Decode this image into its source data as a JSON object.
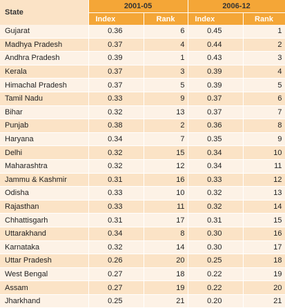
{
  "table": {
    "state_header": "State",
    "periods": [
      "2001-05",
      "2006-12"
    ],
    "sub_headers": {
      "index": "Index",
      "rank": "Rank"
    },
    "rows": [
      {
        "state": "Gujarat",
        "i1": "0.36",
        "r1": "6",
        "i2": "0.45",
        "r2": "1"
      },
      {
        "state": "Madhya Pradesh",
        "i1": "0.37",
        "r1": "4",
        "i2": "0.44",
        "r2": "2"
      },
      {
        "state": "Andhra Pradesh",
        "i1": "0.39",
        "r1": "1",
        "i2": "0.43",
        "r2": "3"
      },
      {
        "state": "Kerala",
        "i1": "0.37",
        "r1": "3",
        "i2": "0.39",
        "r2": "4"
      },
      {
        "state": "Himachal Pradesh",
        "i1": "0.37",
        "r1": "5",
        "i2": "0.39",
        "r2": "5"
      },
      {
        "state": "Tamil Nadu",
        "i1": "0.33",
        "r1": "9",
        "i2": "0.37",
        "r2": "6"
      },
      {
        "state": "Bihar",
        "i1": "0.32",
        "r1": "13",
        "i2": "0.37",
        "r2": "7"
      },
      {
        "state": "Punjab",
        "i1": "0.38",
        "r1": "2",
        "i2": "0.36",
        "r2": "8"
      },
      {
        "state": "Haryana",
        "i1": "0.34",
        "r1": "7",
        "i2": "0.35",
        "r2": "9"
      },
      {
        "state": "Delhi",
        "i1": "0.32",
        "r1": "15",
        "i2": "0.34",
        "r2": "10"
      },
      {
        "state": "Maharashtra",
        "i1": "0.32",
        "r1": "12",
        "i2": "0.34",
        "r2": "11"
      },
      {
        "state": "Jammu & Kashmir",
        "i1": "0.31",
        "r1": "16",
        "i2": "0.33",
        "r2": "12"
      },
      {
        "state": "Odisha",
        "i1": "0.33",
        "r1": "10",
        "i2": "0.32",
        "r2": "13"
      },
      {
        "state": "Rajasthan",
        "i1": "0.33",
        "r1": "11",
        "i2": "0.32",
        "r2": "14"
      },
      {
        "state": "Chhattisgarh",
        "i1": "0.31",
        "r1": "17",
        "i2": "0.31",
        "r2": "15"
      },
      {
        "state": "Uttarakhand",
        "i1": "0.34",
        "r1": "8",
        "i2": "0.30",
        "r2": "16"
      },
      {
        "state": "Karnataka",
        "i1": "0.32",
        "r1": "14",
        "i2": "0.30",
        "r2": "17"
      },
      {
        "state": "Uttar Pradesh",
        "i1": "0.26",
        "r1": "20",
        "i2": "0.25",
        "r2": "18"
      },
      {
        "state": "West Bengal",
        "i1": "0.27",
        "r1": "18",
        "i2": "0.22",
        "r2": "19"
      },
      {
        "state": "Assam",
        "i1": "0.27",
        "r1": "19",
        "i2": "0.22",
        "r2": "20"
      },
      {
        "state": "Jharkhand",
        "i1": "0.25",
        "r1": "21",
        "i2": "0.20",
        "r2": "21"
      }
    ]
  }
}
